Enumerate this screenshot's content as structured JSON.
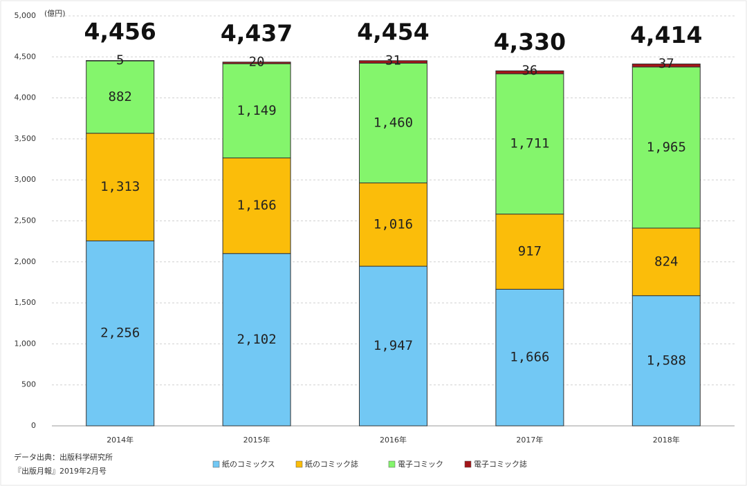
{
  "chart_data": {
    "type": "stacked_bar",
    "y_unit": "(億円)",
    "categories": [
      "2014年",
      "2015年",
      "2016年",
      "2017年",
      "2018年"
    ],
    "series": [
      {
        "name": "紙のコミックス",
        "color": "#72c8f4",
        "values": [
          2256,
          2102,
          1947,
          1666,
          1588
        ],
        "value_labels": [
          "2,256",
          "2,102",
          "1,947",
          "1,666",
          "1,588"
        ]
      },
      {
        "name": "紙のコミック誌",
        "color": "#fbbd0a",
        "values": [
          1313,
          1166,
          1016,
          917,
          824
        ],
        "value_labels": [
          "1,313",
          "1,166",
          "1,016",
          "917",
          "824"
        ]
      },
      {
        "name": "電子コミック",
        "color": "#84f56c",
        "values": [
          882,
          1149,
          1460,
          1711,
          1965
        ],
        "value_labels": [
          "882",
          "1,149",
          "1,460",
          "1,711",
          "1,965"
        ]
      },
      {
        "name": "電子コミック誌",
        "color": "#a3161a",
        "values": [
          5,
          20,
          31,
          36,
          37
        ],
        "value_labels": [
          "5",
          "20",
          "31",
          "36",
          "37"
        ]
      }
    ],
    "totals": {
      "values": [
        4456,
        4437,
        4454,
        4330,
        4414
      ],
      "value_labels": [
        "4,456",
        "4,437",
        "4,454",
        "4,330",
        "4,414"
      ]
    },
    "ylim": [
      0,
      5000
    ],
    "yticks": [
      0,
      500,
      {
        "value": 1000,
        "label": "1,000"
      },
      {
        "value": 1500,
        "label": "1,500"
      },
      {
        "value": 2000,
        "label": "2,000"
      },
      {
        "value": 2500,
        "label": "2,500"
      },
      {
        "value": 3000,
        "label": "3,000"
      },
      {
        "value": 3500,
        "label": "3,500"
      },
      {
        "value": 4000,
        "label": "4,000"
      },
      {
        "value": 4500,
        "label": "4,500"
      },
      {
        "value": 5000,
        "label": "5,000"
      }
    ],
    "grid": true,
    "source": [
      "データ出典：出版科学研究所",
      "『出版月報』2019年2月号"
    ]
  }
}
